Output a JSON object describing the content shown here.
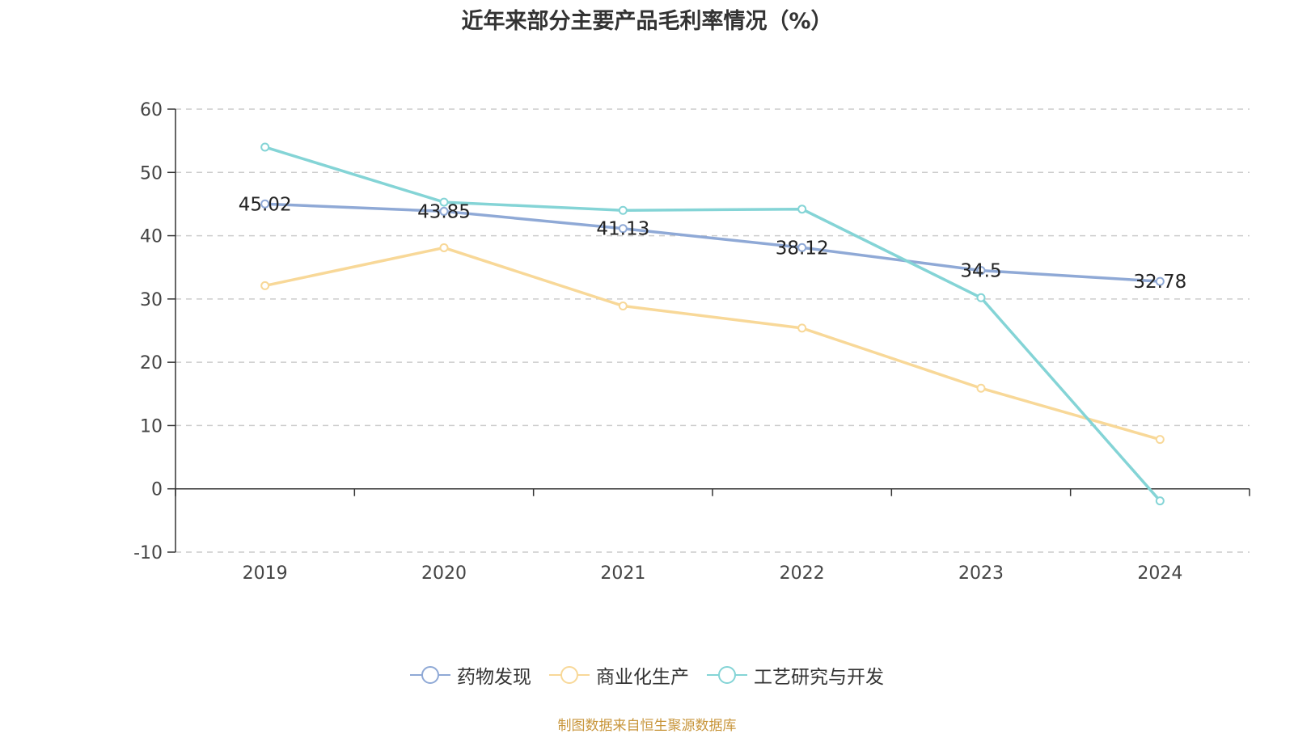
{
  "chart_data": {
    "type": "line",
    "title": "近年来部分主要产品毛利率情况（%）",
    "categories": [
      "2019",
      "2020",
      "2021",
      "2022",
      "2023",
      "2024"
    ],
    "ylim": [
      -10,
      60
    ],
    "yticks": [
      60,
      50,
      40,
      30,
      20,
      10,
      0,
      -10
    ],
    "grid": true,
    "legend_position": "bottom",
    "series": [
      {
        "name": "药物发现",
        "color": "#8fa9d6",
        "values": [
          45.02,
          43.85,
          41.13,
          38.12,
          34.5,
          32.78
        ],
        "labels": [
          "45.02",
          "43.85",
          "41.13",
          "38.12",
          "34.5",
          "32.78"
        ]
      },
      {
        "name": "商业化生产",
        "color": "#f8d898",
        "values": [
          32.1,
          38.1,
          28.9,
          25.4,
          15.9,
          7.8
        ]
      },
      {
        "name": "工艺研究与开发",
        "color": "#84d4d6",
        "values": [
          54.0,
          45.3,
          44.0,
          44.2,
          30.2,
          -1.9
        ]
      }
    ]
  },
  "source": "制图数据来自恒生聚源数据库"
}
